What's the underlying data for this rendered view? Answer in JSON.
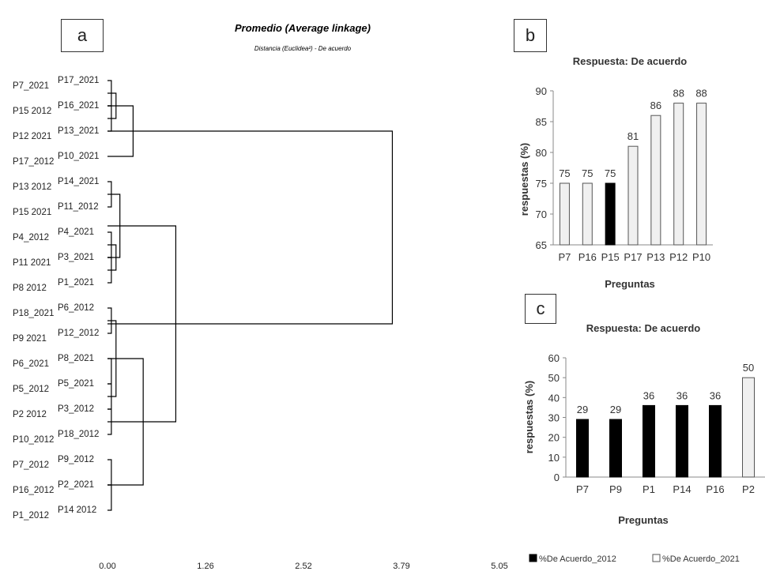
{
  "panels": {
    "a": {
      "label": "a"
    },
    "b": {
      "label": "b"
    },
    "c": {
      "label": "c"
    }
  },
  "chart_data": [
    {
      "type": "dendrogram",
      "title": "Promedio (Average linkage)",
      "subtitle": "Distancia (Euclidea²) - De acuerdo",
      "xlim": [
        0,
        5.05
      ],
      "xticks": [
        "0.00",
        "1.26",
        "2.52",
        "3.79",
        "5.05"
      ],
      "left_labels": [
        "P7_2021",
        "P15 2012",
        "P12 2021",
        "P17_2012",
        "P13 2012",
        "P15 2021",
        "P4_2012",
        "P11 2021",
        "P8 2012",
        "P18_2021",
        "P9 2021",
        "P6_2021",
        "P5_2012",
        "P2 2012",
        "P10_2012",
        "P7_2012",
        "P16_2012",
        "P1_2012"
      ],
      "right_labels": [
        "P17_2021",
        "P16_2021",
        "P13_2021",
        "P10_2021",
        "P14_2021",
        "P11_2012",
        "P4_2021",
        "P3_2021",
        "P1_2021",
        "P6_2012",
        "P12_2012",
        "P8_2021",
        "P5_2021",
        "P3_2012",
        "P18_2012",
        "P9_2012",
        "P2_2021",
        "P14 2012"
      ],
      "merges": [
        {
          "a": 0,
          "b": 1,
          "height": 0.05
        },
        {
          "a": 1,
          "b": 2,
          "height": 0.05
        },
        {
          "a": 0.5,
          "b": 1.5,
          "height": 0.11
        },
        {
          "a": 1.0,
          "b": 3,
          "height": 0.33
        },
        {
          "a": 4,
          "b": 5,
          "height": 0.05
        },
        {
          "a": 6,
          "b": 7,
          "height": 0.05
        },
        {
          "a": 7,
          "b": 8,
          "height": 0.05
        },
        {
          "a": 6.5,
          "b": 7.5,
          "height": 0.11
        },
        {
          "a": 4.5,
          "b": 7.0,
          "height": 0.16
        },
        {
          "a": 9,
          "b": 10,
          "height": 0.05
        },
        {
          "a": 11,
          "b": 12,
          "height": 0.05
        },
        {
          "a": 12,
          "b": 13,
          "height": 0.05
        },
        {
          "a": 13,
          "b": 14,
          "height": 0.05
        },
        {
          "a": 9.5,
          "b": 12.5,
          "height": 0.11
        },
        {
          "a": 15,
          "b": 16,
          "height": 0.05
        },
        {
          "a": 16,
          "b": 17,
          "height": 0.05
        },
        {
          "a": 11.0,
          "b": 16.0,
          "height": 0.46
        },
        {
          "a": 5.75,
          "b": 13.5,
          "height": 0.88
        },
        {
          "a": 2.0,
          "b": 9.625,
          "height": 3.67
        }
      ]
    },
    {
      "type": "bar",
      "title": "Respuesta: De acuerdo",
      "xlabel": "Preguntas",
      "ylabel": "respuestas (%)",
      "ylim": [
        65,
        90
      ],
      "yticks": [
        65,
        70,
        75,
        80,
        85,
        90
      ],
      "categories": [
        "P7",
        "P16",
        "P15",
        "P17",
        "P13",
        "P12",
        "P10"
      ],
      "series": [
        {
          "name": "%De Acuerdo_2012",
          "color": "#000000",
          "values": [
            null,
            null,
            75,
            null,
            null,
            null,
            null
          ]
        },
        {
          "name": "%De Acuerdo_2021",
          "color": "#f0f0f0",
          "values": [
            75,
            75,
            null,
            81,
            86,
            88,
            88
          ]
        }
      ],
      "data_labels": [
        "75",
        "75",
        "75",
        "81",
        "86",
        "88",
        "88"
      ]
    },
    {
      "type": "bar",
      "title": "Respuesta: De acuerdo",
      "xlabel": "Preguntas",
      "ylabel": "respuestas (%)",
      "ylim": [
        0,
        60
      ],
      "yticks": [
        0,
        10,
        20,
        30,
        40,
        50,
        60
      ],
      "categories": [
        "P7",
        "P9",
        "P1",
        "P14",
        "P16",
        "P2"
      ],
      "series": [
        {
          "name": "%De Acuerdo_2012",
          "color": "#000000",
          "values": [
            29,
            29,
            36,
            36,
            36,
            null
          ]
        },
        {
          "name": "%De Acuerdo_2021",
          "color": "#f0f0f0",
          "values": [
            null,
            null,
            null,
            null,
            null,
            50
          ]
        }
      ],
      "data_labels": [
        "29",
        "29",
        "36",
        "36",
        "36",
        "50"
      ],
      "legend": {
        "position": "bottom",
        "items": [
          "%De Acuerdo_2012",
          "%De Acuerdo_2021"
        ]
      }
    }
  ]
}
